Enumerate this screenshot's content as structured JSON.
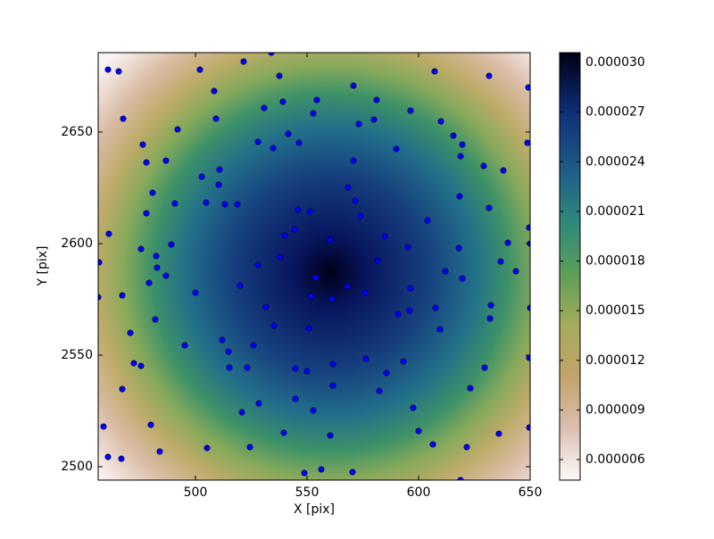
{
  "chart_data": {
    "type": "scatter",
    "xlabel": "X [pix]",
    "ylabel": "Y [pix]",
    "xlim": [
      456.4,
      650
    ],
    "ylim": [
      2494,
      2685.6
    ],
    "xticks": [
      500,
      550,
      600,
      650
    ],
    "yticks": [
      2500,
      2550,
      2600,
      2650
    ],
    "color": "#0000ff",
    "clim": [
      4.76e-06,
      3.06e-05
    ],
    "cticks": [
      6e-06,
      9e-06,
      1.2e-05,
      1.5e-05,
      1.8e-05,
      2.1e-05,
      2.4e-05,
      2.7e-05,
      {
        "value": 3e-05,
        "label": "0.000030"
      }
    ],
    "x": [
      534.0,
      460.8,
      465.6,
      502.0,
      521.6,
      537.6,
      607.2,
      631.6,
      649.2,
      508.4,
      554.4,
      539.2,
      570.8,
      581.2,
      596.4,
      467.6,
      509.2,
      530.8,
      552.8,
      580.0,
      573.2,
      610.0,
      615.6,
      619.6,
      492.0,
      476.4,
      528.0,
      541.6,
      546.4,
      534.8,
      648.8,
      618.8,
      590.0,
      570.8,
      486.8,
      478.0,
      629.2,
      638.0,
      510.8,
      502.8,
      510.4,
      568.4,
      618.4,
      480.8,
      504.8,
      513.2,
      518.8,
      490.8,
      546.0,
      551.2,
      571.6,
      574.0,
      631.6,
      478.0,
      461.2,
      544.4,
      540.0,
      560.4,
      584.8,
      604.0,
      649.6,
      475.6,
      489.2,
      595.2,
      618.0,
      640.0,
      650.0,
      482.4,
      482.8,
      486.8,
      528.0,
      538.0,
      581.6,
      636.8,
      612.0,
      643.6,
      456.8,
      479.2,
      554.0,
      520.0,
      619.6,
      456.4,
      467.2,
      552.0,
      561.2,
      568.0,
      576.0,
      596.4,
      500.0,
      531.6,
      607.6,
      632.4,
      650.0,
      590.8,
      596.0,
      632.0,
      482.0,
      535.2,
      550.8,
      609.6,
      470.8,
      512.0,
      495.2,
      526.0,
      514.8,
      576.4,
      472.4,
      475.6,
      515.2,
      523.2,
      544.8,
      550.0,
      561.6,
      585.6,
      593.2,
      629.6,
      649.6,
      623.2,
      561.6,
      582.4,
      467.2,
      528.4,
      544.8,
      520.8,
      597.6,
      552.8,
      480.0,
      458.8,
      560.4,
      600.0,
      636.0,
      539.6,
      606.4,
      621.6,
      524.4,
      505.2,
      484.0,
      649.6,
      466.8,
      460.8,
      548.8,
      556.4,
      570.4,
      618.8
    ],
    "values": [
      2685.6,
      2678.0,
      2677.2,
      2678.0,
      2681.6,
      2675.2,
      2677.2,
      2675.2,
      2670.0,
      2668.4,
      2664.4,
      2663.6,
      2670.8,
      2664.4,
      2659.6,
      2656.0,
      2656.0,
      2660.8,
      2658.4,
      2655.6,
      2653.6,
      2654.8,
      2648.4,
      2644.4,
      2651.2,
      2644.4,
      2645.6,
      2649.2,
      2645.2,
      2642.8,
      2645.2,
      2639.2,
      2642.4,
      2637.2,
      2637.2,
      2636.4,
      2634.8,
      2632.8,
      2633.2,
      2630.0,
      2626.4,
      2625.2,
      2621.2,
      2622.8,
      2618.4,
      2617.6,
      2617.6,
      2618.0,
      2615.2,
      2614.4,
      2619.2,
      2612.4,
      2616.0,
      2613.6,
      2604.4,
      2606.4,
      2603.6,
      2601.6,
      2603.2,
      2610.4,
      2607.2,
      2597.6,
      2599.6,
      2598.4,
      2598.0,
      2600.4,
      2600.0,
      2594.4,
      2589.2,
      2585.6,
      2590.4,
      2594.0,
      2592.4,
      2592.0,
      2587.6,
      2587.6,
      2591.6,
      2582.4,
      2584.8,
      2581.2,
      2584.4,
      2576.0,
      2576.8,
      2576.4,
      2575.2,
      2580.8,
      2578.0,
      2580.0,
      2578.0,
      2571.6,
      2571.2,
      2572.4,
      2571.2,
      2568.4,
      2570.0,
      2566.4,
      2566.0,
      2563.2,
      2562.0,
      2561.6,
      2560.0,
      2556.8,
      2554.4,
      2554.4,
      2551.6,
      2548.4,
      2546.4,
      2545.2,
      2544.4,
      2544.4,
      2544.0,
      2542.8,
      2546.0,
      2542.0,
      2547.2,
      2544.4,
      2548.8,
      2535.2,
      2536.4,
      2534.0,
      2534.8,
      2528.4,
      2530.4,
      2524.4,
      2526.4,
      2525.2,
      2518.8,
      2518.0,
      2514.0,
      2516.0,
      2514.8,
      2515.2,
      2510.0,
      2508.8,
      2508.8,
      2508.4,
      2506.8,
      2517.6,
      2503.6,
      2504.4,
      2497.2,
      2498.8,
      2497.6,
      2494.0
    ]
  }
}
